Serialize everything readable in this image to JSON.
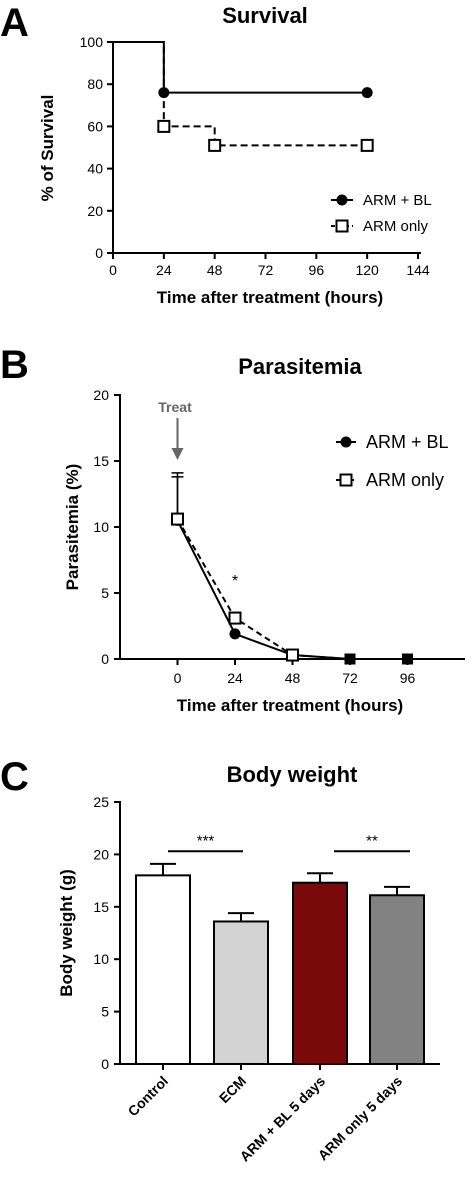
{
  "panels": {
    "a": {
      "letter": "A",
      "title": "Survival",
      "xlabel": "Time after treatment (hours)",
      "ylabel": "% of Survival"
    },
    "b": {
      "letter": "B",
      "title": "Parasitemia",
      "xlabel": "Time after treatment (hours)",
      "ylabel": "Parasitemia (%)",
      "annotation": "Treat",
      "significance": "*"
    },
    "c": {
      "letter": "C",
      "title": "Body weight",
      "xlabel": "",
      "ylabel": "Body weight (g)"
    }
  },
  "chart_data": [
    {
      "type": "line",
      "title": "Survival",
      "xlabel": "Time after treatment (hours)",
      "ylabel": "% of Survival",
      "xlim": [
        0,
        144
      ],
      "ylim": [
        0,
        100
      ],
      "xticks": [
        0,
        24,
        48,
        72,
        96,
        120,
        144
      ],
      "yticks": [
        0,
        20,
        40,
        60,
        80,
        100
      ],
      "step": true,
      "legend": "bottom-right",
      "series": [
        {
          "name": "ARM + BL",
          "marker": "filled-circle",
          "line": "solid",
          "color": "#000000",
          "x": [
            0,
            24,
            120
          ],
          "y": [
            100,
            76,
            76
          ],
          "marked_points": [
            [
              24,
              76
            ],
            [
              120,
              76
            ]
          ]
        },
        {
          "name": "ARM only",
          "marker": "open-square",
          "line": "dashed",
          "color": "#000000",
          "x": [
            0,
            24,
            48,
            120
          ],
          "y": [
            100,
            60,
            51,
            51
          ],
          "marked_points": [
            [
              24,
              60
            ],
            [
              48,
              51
            ],
            [
              120,
              51
            ]
          ]
        }
      ]
    },
    {
      "type": "line",
      "title": "Parasitemia",
      "xlabel": "Time after treatment (hours)",
      "ylabel": "Parasitemia (%)",
      "xlim": [
        -24,
        120
      ],
      "ylim": [
        0,
        20
      ],
      "xticks": [
        0,
        24,
        48,
        72,
        96
      ],
      "yticks": [
        0,
        5,
        10,
        15,
        20
      ],
      "legend": "top-right",
      "annotations": [
        {
          "text": "Treat",
          "x": 0
        },
        {
          "text": "*",
          "x": 24
        }
      ],
      "series": [
        {
          "name": "ARM + BL",
          "marker": "filled-circle",
          "line": "solid",
          "color": "#000000",
          "x": [
            0,
            24,
            48,
            72,
            96
          ],
          "y": [
            10.5,
            1.9,
            0.3,
            0,
            0
          ],
          "error_upper": [
            3.3,
            0,
            0,
            0,
            0
          ]
        },
        {
          "name": "ARM only",
          "marker": "open-square",
          "line": "dashed",
          "color": "#000000",
          "x": [
            0,
            24,
            48,
            72,
            96
          ],
          "y": [
            10.6,
            3.1,
            0.3,
            0,
            0
          ],
          "error_upper": [
            3.5,
            0.3,
            0,
            0,
            0
          ]
        }
      ]
    },
    {
      "type": "bar",
      "title": "Body weight",
      "xlabel": "",
      "ylabel": "Body weight (g)",
      "ylim": [
        0,
        25
      ],
      "yticks": [
        0,
        5,
        10,
        15,
        20,
        25
      ],
      "categories": [
        "Control",
        "ECM",
        "ARM + BL 5 days",
        "ARM only 5 days"
      ],
      "values": [
        18.0,
        13.6,
        17.3,
        16.1
      ],
      "error_upper": [
        1.1,
        0.8,
        0.9,
        0.8
      ],
      "colors": [
        "#ffffff",
        "#d3d3d3",
        "#7a0a0a",
        "#828282"
      ],
      "significance": [
        {
          "label": "***",
          "from": "Control",
          "to": "ECM",
          "y": 20.3
        },
        {
          "label": "**",
          "from": "ARM + BL 5 days",
          "to": "ARM only 5 days",
          "y": 20.3
        }
      ]
    }
  ]
}
